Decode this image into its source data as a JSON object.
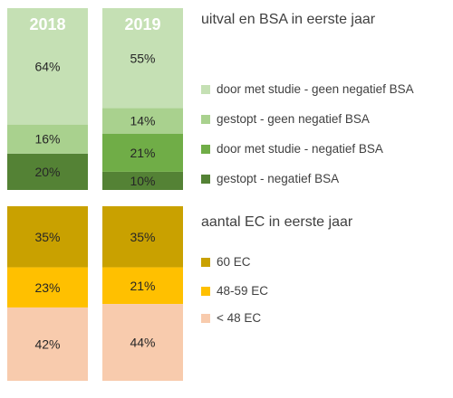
{
  "chart_data": [
    {
      "type": "bar",
      "stacked": true,
      "title": "uitval en BSA in eerste jaar",
      "categories": [
        "2018",
        "2019"
      ],
      "stack_order": "bottom-to-top",
      "series": [
        {
          "name": "gestopt - negatief BSA",
          "color": "#548235",
          "values": [
            20,
            10
          ],
          "labels": [
            "20%",
            "10%"
          ]
        },
        {
          "name": "door met studie - negatief BSA",
          "color": "#70AD47",
          "values": [
            0,
            21
          ],
          "labels": [
            "",
            "21%"
          ]
        },
        {
          "name": "gestopt - geen negatief BSA",
          "color": "#A9D18E",
          "values": [
            16,
            14
          ],
          "labels": [
            "16%",
            "14%"
          ]
        },
        {
          "name": "door met studie - geen negatief BSA",
          "color": "#C5E0B4",
          "values": [
            64,
            55
          ],
          "labels": [
            "64%",
            "55%"
          ]
        }
      ],
      "legend_order": [
        3,
        2,
        1,
        0
      ],
      "legend": "right",
      "ylim": [
        0,
        100
      ]
    },
    {
      "type": "bar",
      "stacked": true,
      "title": "aantal EC in eerste jaar",
      "categories": [
        "2018",
        "2019"
      ],
      "stack_order": "top-to-bottom",
      "series": [
        {
          "name": "60 EC",
          "color": "#C9A100",
          "values": [
            35,
            35
          ],
          "labels": [
            "35%",
            "35%"
          ]
        },
        {
          "name": "48-59 EC",
          "color": "#FFC000",
          "values": [
            23,
            21
          ],
          "labels": [
            "23%",
            "21%"
          ]
        },
        {
          "name": "< 48 EC",
          "color": "#F8CBAD",
          "values": [
            42,
            44
          ],
          "labels": [
            "42%",
            "44%"
          ]
        }
      ],
      "legend_order": [
        0,
        1,
        2
      ],
      "legend": "right",
      "ylim": [
        0,
        100
      ]
    }
  ],
  "category_label_color": "#ffffff",
  "value_label_color": "#262626"
}
